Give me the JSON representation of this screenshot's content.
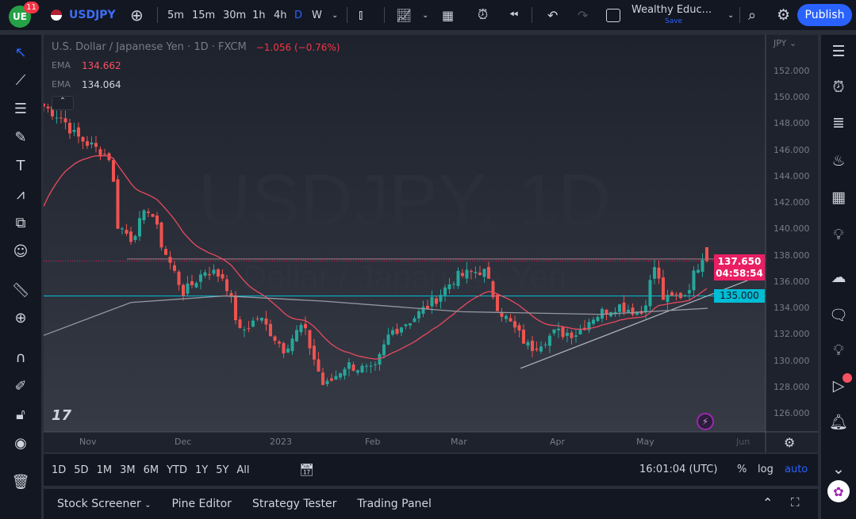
{
  "header": {
    "notification_count": "11",
    "symbol": "USDJPY",
    "intervals": [
      "5m",
      "15m",
      "30m",
      "1h",
      "4h",
      "D",
      "W"
    ],
    "active_interval": "D",
    "layout_name": "Wealthy Educ...",
    "save_label": "Save",
    "publish_label": "Publish"
  },
  "legend": {
    "title": "U.S. Dollar / Japanese Yen · 1D · FXCM",
    "change": "−1.056 (−0.76%)",
    "ema1_label": "EMA",
    "ema1_value": "134.662",
    "ema2_label": "EMA",
    "ema2_value": "134.064"
  },
  "watermark": {
    "line1": "USDJPY, 1D",
    "line2": "Dollar / Japanese Yen"
  },
  "price_axis": {
    "currency": "JPY",
    "ticks": [
      "152.000",
      "150.000",
      "148.000",
      "146.000",
      "144.000",
      "142.000",
      "140.000",
      "138.000",
      "136.000",
      "134.000",
      "132.000",
      "130.000",
      "128.000",
      "126.000"
    ],
    "last_price": "137.650",
    "countdown": "04:58:54",
    "level_label": "135.000"
  },
  "time_axis": {
    "labels": [
      "Nov",
      "Dec",
      "2023",
      "Feb",
      "Mar",
      "Apr",
      "May",
      "Jun"
    ]
  },
  "bottom": {
    "ranges": [
      "1D",
      "5D",
      "1M",
      "3M",
      "6M",
      "YTD",
      "1Y",
      "5Y",
      "All"
    ],
    "clock": "16:01:04 (UTC)",
    "percent": "%",
    "log": "log",
    "auto": "auto"
  },
  "panels": {
    "stock_screener": "Stock Screener",
    "pine_editor": "Pine Editor",
    "strategy_tester": "Strategy Tester",
    "trading_panel": "Trading Panel"
  },
  "colors": {
    "up": "#26a69a",
    "down": "#ef5350",
    "ema_fast": "#e84a5f",
    "ema_slow": "#9598a1",
    "level": "#00bcd4",
    "last_price": "#e91e63",
    "accent": "#2962ff"
  },
  "chart_data": {
    "type": "candlestick",
    "ylim": [
      125,
      153
    ],
    "close_path": [
      [
        "2022-10-18",
        149.4
      ],
      [
        "2022-10-24",
        148.5
      ],
      [
        "2022-10-28",
        147.2
      ],
      [
        "2022-11-09",
        145.4
      ],
      [
        "2022-11-10",
        140.6
      ],
      [
        "2022-11-15",
        139.4
      ],
      [
        "2022-11-21",
        141.8
      ],
      [
        "2022-11-25",
        138.8
      ],
      [
        "2022-12-02",
        135.2
      ],
      [
        "2022-12-09",
        137.0
      ],
      [
        "2022-12-15",
        136.4
      ],
      [
        "2022-12-20",
        132.2
      ],
      [
        "2022-12-26",
        133.4
      ],
      [
        "2023-01-03",
        131.0
      ],
      [
        "2023-01-09",
        132.8
      ],
      [
        "2023-01-16",
        128.0
      ],
      [
        "2023-01-23",
        129.8
      ],
      [
        "2023-02-01",
        129.2
      ],
      [
        "2023-02-06",
        132.2
      ],
      [
        "2023-02-14",
        133.4
      ],
      [
        "2023-02-20",
        134.6
      ],
      [
        "2023-02-27",
        136.4
      ],
      [
        "2023-03-08",
        137.0
      ],
      [
        "2023-03-13",
        134.0
      ],
      [
        "2023-03-23",
        131.0
      ],
      [
        "2023-03-31",
        132.2
      ],
      [
        "2023-04-07",
        132.2
      ],
      [
        "2023-04-12",
        133.4
      ],
      [
        "2023-04-20",
        134.3
      ],
      [
        "2023-04-28",
        133.7
      ],
      [
        "2023-05-02",
        137.3
      ],
      [
        "2023-05-05",
        134.6
      ],
      [
        "2023-05-12",
        135.2
      ],
      [
        "2023-05-18",
        138.5
      ],
      [
        "2023-05-19",
        137.65
      ]
    ],
    "ema_slow_path": [
      [
        "2022-10-18",
        132.0
      ],
      [
        "2022-11-15",
        134.5
      ],
      [
        "2022-12-15",
        135.0
      ],
      [
        "2023-01-16",
        134.6
      ],
      [
        "2023-03-01",
        133.8
      ],
      [
        "2023-04-15",
        133.6
      ],
      [
        "2023-05-19",
        134.06
      ]
    ],
    "horizontal_levels": [
      137.65,
      135.0,
      137.8
    ],
    "trendline": [
      [
        "2023-03-20",
        129.5
      ],
      [
        "2023-06-01",
        136.2
      ]
    ]
  }
}
